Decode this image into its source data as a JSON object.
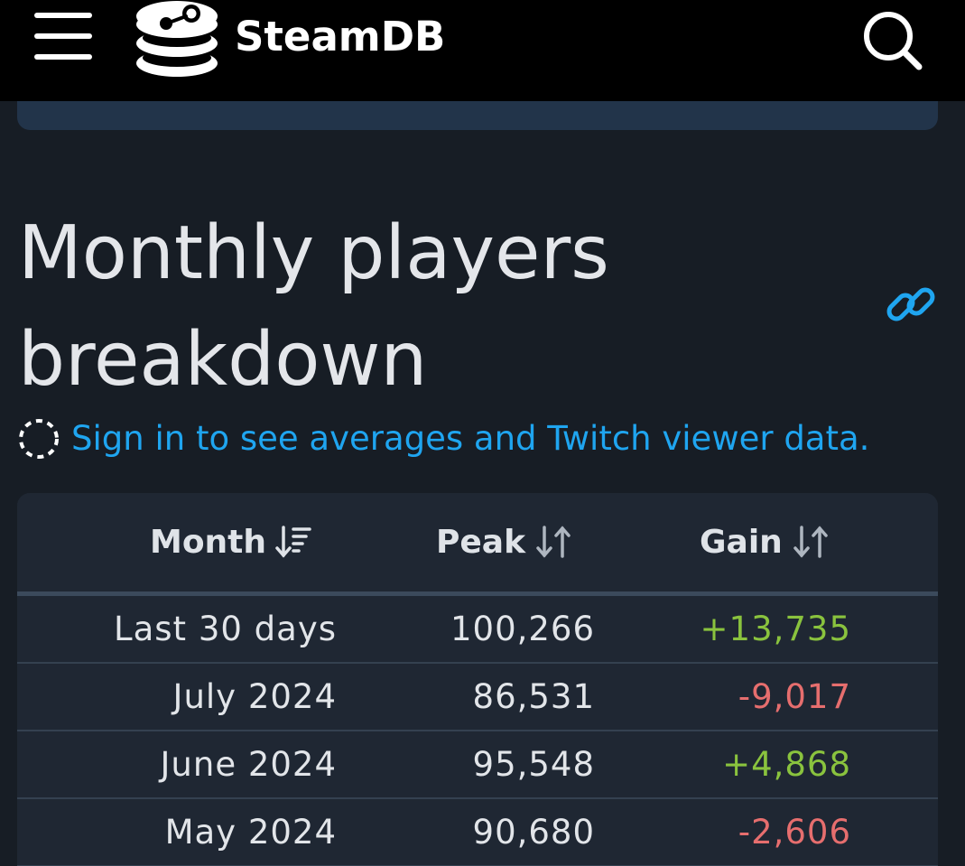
{
  "header": {
    "brand": "SteamDB",
    "menu_icon": "hamburger-menu-icon",
    "logo_icon": "steamdb-logo-icon",
    "search_icon": "search-icon",
    "background": "#000000"
  },
  "section": {
    "title": "Monthly players breakdown",
    "link_icon": "link-icon",
    "signin_icon": "dashed-circle-icon",
    "signin_text": "Sign in to see averages and Twitch viewer data.",
    "link_color": "#1fa5f0"
  },
  "table": {
    "columns": [
      {
        "label": "Month",
        "sort_icon": "sort-descending-icon"
      },
      {
        "label": "Peak",
        "sort_icon": "sort-arrows-icon"
      },
      {
        "label": "Gain",
        "sort_icon": "sort-arrows-icon"
      }
    ],
    "rows": [
      {
        "month": "Last 30 days",
        "peak": "100,266",
        "gain": "+13,735",
        "gain_type": "positive"
      },
      {
        "month": "July 2024",
        "peak": "86,531",
        "gain": "-9,017",
        "gain_type": "negative"
      },
      {
        "month": "June 2024",
        "peak": "95,548",
        "gain": "+4,868",
        "gain_type": "positive"
      },
      {
        "month": "May 2024",
        "peak": "90,680",
        "gain": "-2,606",
        "gain_type": "negative"
      }
    ],
    "colors": {
      "positive": "#8ac33e",
      "negative": "#e66e6e"
    }
  }
}
